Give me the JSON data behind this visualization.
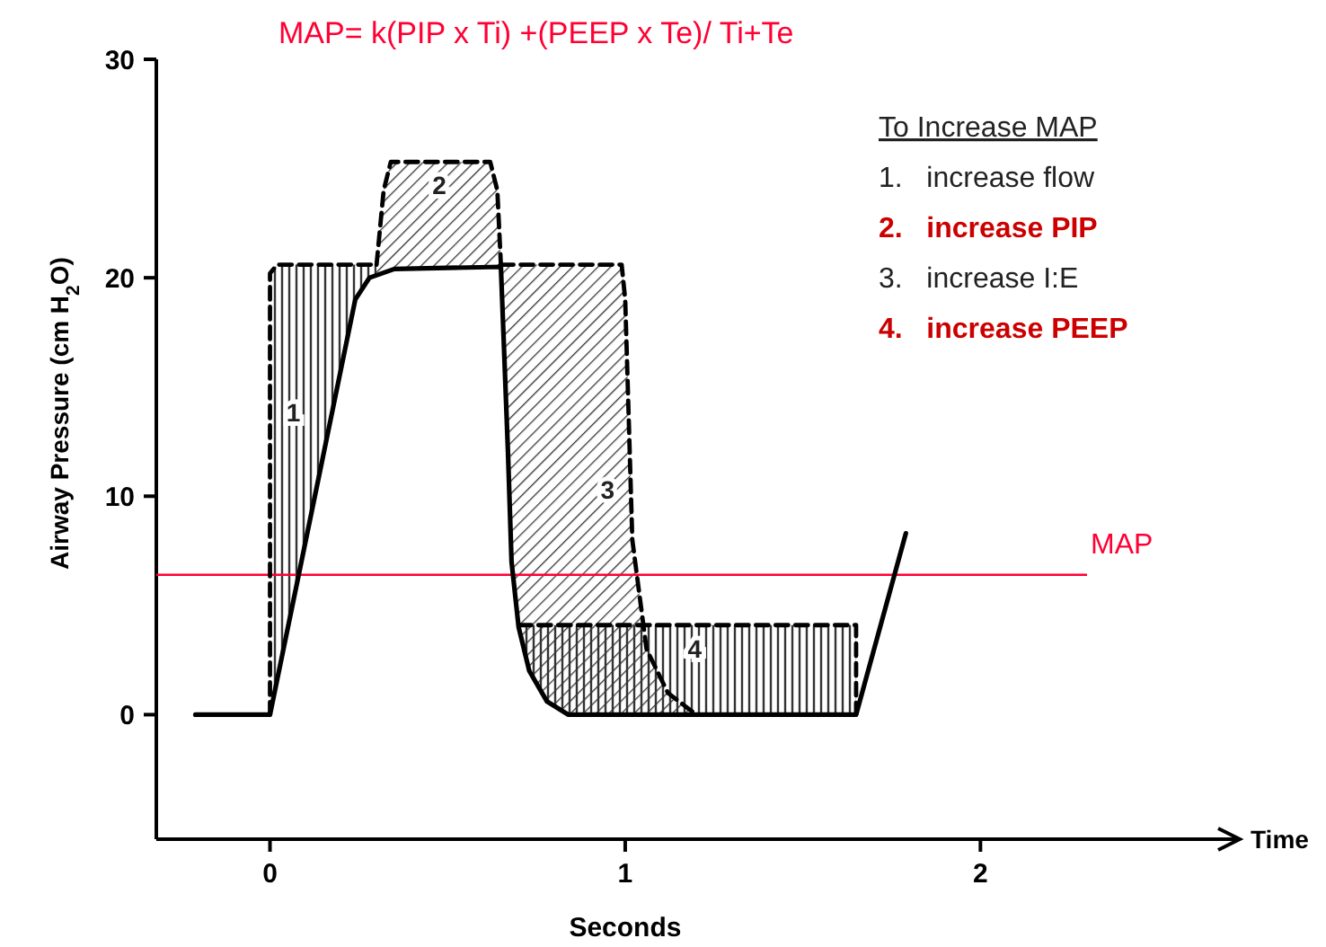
{
  "chart_data": {
    "type": "line",
    "title": "MAP= k(PIP x Ti) +(PEEP x Te)/ Ti+Te",
    "xlabel": "Seconds",
    "ylabel": "Airway Pressure (cm H$_{2}$O)",
    "legend_title": "To Increase MAP",
    "xlim": [
      -0.32,
      2.73
    ],
    "ylim": [
      -5.7,
      30
    ],
    "xticks": [
      0,
      1,
      2
    ],
    "yticks": [
      0,
      10,
      20,
      30
    ],
    "grid": false,
    "series": [
      {
        "color": "#000000",
        "line_style": "solid",
        "x": [
          -0.21,
          0,
          0.24,
          0.28,
          0.35,
          0.65,
          0.67,
          0.68,
          0.7,
          0.73,
          0.78,
          0.84,
          1.65,
          1.79
        ],
        "values": [
          0,
          0,
          19,
          20,
          20.4,
          20.5,
          12,
          7,
          4,
          2,
          0.6,
          0,
          0,
          8.3
        ]
      },
      {
        "name": "1",
        "color": "#000000",
        "line_style": "dashed",
        "x": [
          0,
          0,
          0.02,
          0.24,
          0.3
        ],
        "values": [
          0,
          20.2,
          20.6,
          20.6,
          20.6
        ]
      },
      {
        "name": "2",
        "color": "#000000",
        "line_style": "dashed",
        "x": [
          0.3,
          0.32,
          0.34,
          0.62,
          0.64,
          0.65
        ],
        "values": [
          20.6,
          24,
          25.3,
          25.3,
          24,
          20.6
        ]
      },
      {
        "name": "3",
        "color": "#000000",
        "line_style": "dashed",
        "x": [
          0.65,
          0.99,
          1.0,
          1.02,
          1.06,
          1.12,
          1.2
        ],
        "values": [
          20.6,
          20.6,
          19,
          8,
          3,
          1,
          0
        ]
      },
      {
        "name": "4",
        "color": "#000000",
        "line_style": "dashed",
        "x": [
          0.7,
          1.65,
          1.65
        ],
        "values": [
          4.1,
          4.1,
          0
        ]
      }
    ],
    "ref_lines": [
      {
        "axis": "y",
        "value": 6.4,
        "label": "MAP",
        "color": "#ff0033"
      }
    ],
    "annotations": [
      "1.   increase flow",
      "2.   increase PIP",
      "3.   increase I:E",
      "4.   increase PEEP",
      "Time"
    ]
  }
}
